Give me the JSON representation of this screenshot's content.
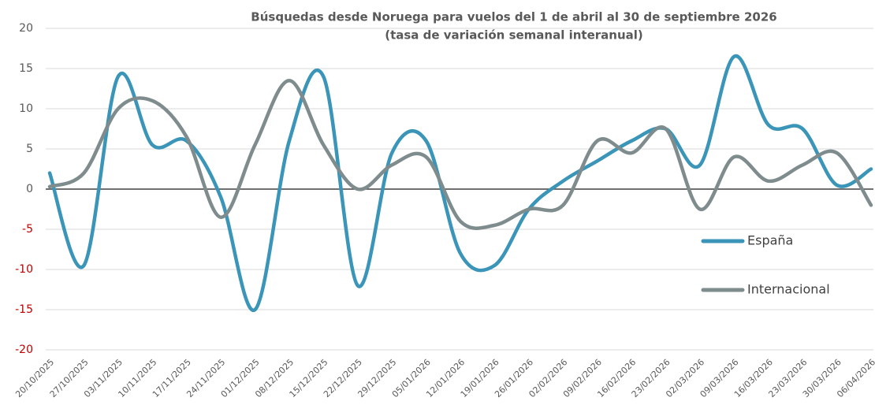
{
  "chart_data": {
    "type": "line",
    "title": "Búsquedas desde Noruega para vuelos del  1 de abril al  30 de septiembre 2026",
    "subtitle": "(tasa de variación semanal interanual)",
    "categories": [
      "20/10/2025",
      "27/10/2025",
      "03/11/2025",
      "10/11/2025",
      "17/11/2025",
      "24/11/2025",
      "01/12/2025",
      "08/12/2025",
      "15/12/2025",
      "22/12/2025",
      "29/12/2025",
      "05/01/2026",
      "12/01/2026",
      "19/01/2026",
      "26/01/2026",
      "02/02/2026",
      "09/02/2026",
      "16/02/2026",
      "23/02/2026",
      "02/03/2026",
      "09/03/2026",
      "16/03/2026",
      "23/03/2026",
      "30/03/2026",
      "06/04/2026"
    ],
    "series": [
      {
        "name": "España",
        "color": "#3a95b8",
        "values": [
          2,
          -9.5,
          14,
          5.5,
          6,
          -1,
          -15,
          6,
          14,
          -12,
          4.5,
          6,
          -8,
          -9.5,
          -2.5,
          1,
          3.5,
          6,
          7.5,
          3,
          16.5,
          8,
          7.5,
          0.5,
          2.5
        ]
      },
      {
        "name": "Internacional",
        "color": "#7f8c8d",
        "values": [
          0.3,
          2,
          10,
          11,
          6.5,
          -3.5,
          5.5,
          13.5,
          5.5,
          0,
          3,
          4,
          -4,
          -4.5,
          -2.5,
          -2,
          6,
          4.5,
          7.5,
          -2.5,
          4,
          1,
          3,
          4.5,
          -2
        ]
      }
    ],
    "ylim": [
      -20,
      20
    ],
    "yticks": [
      -20,
      -15,
      -10,
      -5,
      0,
      5,
      10,
      15,
      20
    ],
    "grid": true,
    "smooth": true,
    "negative_tick_color": "#c00000",
    "legend": "right"
  }
}
